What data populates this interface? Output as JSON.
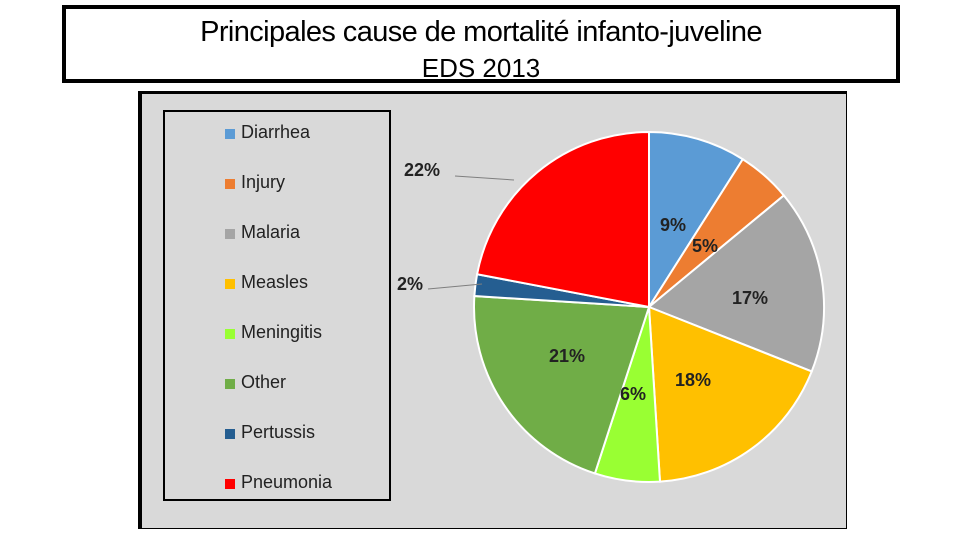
{
  "header": {
    "title": "Principales cause de mortalité infanto-juveline",
    "subtitle": "EDS 2013"
  },
  "chart_data": {
    "type": "pie",
    "title": "",
    "categories": [
      "Diarrhea",
      "Injury",
      "Malaria",
      "Measles",
      "Meningitis",
      "Other",
      "Pertussis",
      "Pneumonia"
    ],
    "values": [
      9,
      5,
      17,
      18,
      6,
      21,
      2,
      22
    ],
    "value_labels": [
      "9%",
      "5%",
      "17%",
      "18%",
      "6%",
      "21%",
      "2%",
      "22%"
    ],
    "colors": [
      "#5b9bd5",
      "#ed7d31",
      "#a5a5a5",
      "#ffc000",
      "#99ff33",
      "#70ad47",
      "#255e91",
      "#ff0000"
    ],
    "legend": "left"
  }
}
